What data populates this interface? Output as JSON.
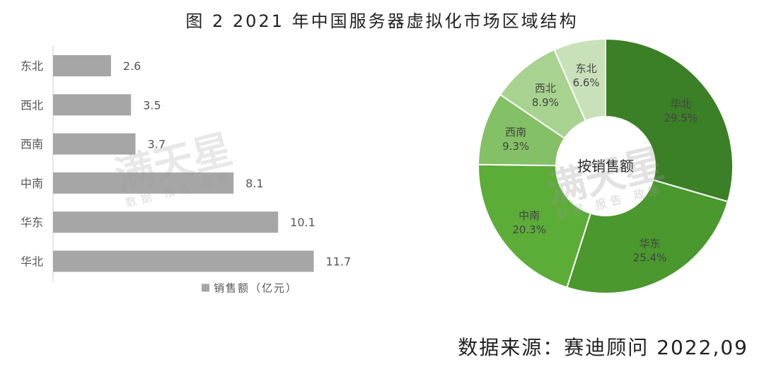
{
  "title": "图 2   2021 年中国服务器虚拟化市场区域结构",
  "source": "数据来源：赛迪顾问    2022,09",
  "watermark": {
    "brand": "满天星",
    "tagline": "数据 报告 政策"
  },
  "chart_data": [
    {
      "type": "bar",
      "orientation": "horizontal",
      "categories": [
        "东北",
        "西北",
        "西南",
        "中南",
        "华东",
        "华北"
      ],
      "series": [
        {
          "name": "销售额（亿元）",
          "values": [
            2.6,
            3.5,
            3.7,
            8.1,
            10.1,
            11.7
          ],
          "color": "#a6a6a6"
        }
      ],
      "xlim": [
        0,
        12.5
      ],
      "grid": false,
      "legend": "bottom"
    },
    {
      "type": "pie",
      "style": "donut",
      "center_label": "按销售额",
      "slices": [
        {
          "label": "华北",
          "value": 29.5,
          "text": "29.5%",
          "color": "#3b7f26"
        },
        {
          "label": "华东",
          "value": 25.4,
          "text": "25.4%",
          "color": "#4a982e"
        },
        {
          "label": "中南",
          "value": 20.3,
          "text": "20.3%",
          "color": "#5cac38"
        },
        {
          "label": "西南",
          "value": 9.3,
          "text": "9.3%",
          "color": "#84c065"
        },
        {
          "label": "西北",
          "value": 8.9,
          "text": "8.9%",
          "color": "#a8d28f"
        },
        {
          "label": "东北",
          "value": 6.6,
          "text": "6.6%",
          "color": "#c8e1b9"
        }
      ]
    }
  ]
}
